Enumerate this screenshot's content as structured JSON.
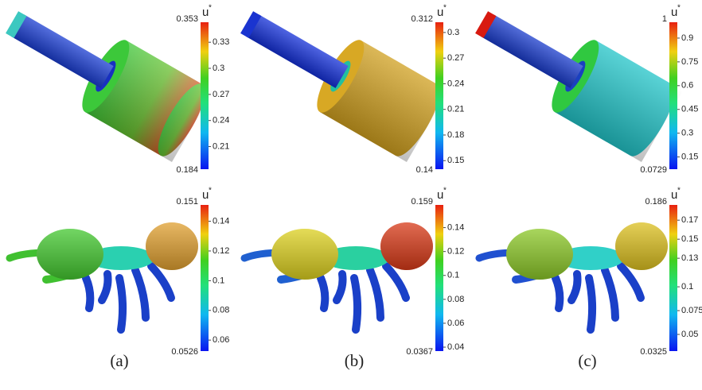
{
  "columns": [
    {
      "caption": "(a)",
      "top": {
        "label": "u",
        "superscript": "*",
        "max": 0.353,
        "min": 0.184,
        "ticks": [
          0.33,
          0.3,
          0.27,
          0.24,
          0.21
        ]
      },
      "bottom": {
        "label": "u",
        "superscript": "*",
        "max": 0.151,
        "min": 0.0526,
        "ticks": [
          0.14,
          0.12,
          0.1,
          0.08,
          0.06
        ]
      }
    },
    {
      "caption": "(b)",
      "top": {
        "label": "u",
        "superscript": "*",
        "max": 0.312,
        "min": 0.14,
        "ticks": [
          0.3,
          0.27,
          0.24,
          0.21,
          0.18,
          0.15
        ]
      },
      "bottom": {
        "label": "u",
        "superscript": "*",
        "max": 0.159,
        "min": 0.0367,
        "ticks": [
          0.14,
          0.12,
          0.1,
          0.08,
          0.06,
          0.04
        ]
      }
    },
    {
      "caption": "(c)",
      "top": {
        "label": "u",
        "superscript": "*",
        "max": 1,
        "min": 0.0729,
        "ticks": [
          0.9,
          0.75,
          0.6,
          0.45,
          0.3,
          0.15
        ]
      },
      "bottom": {
        "label": "u",
        "superscript": "*",
        "max": 0.186,
        "min": 0.0325,
        "ticks": [
          0.17,
          0.15,
          0.13,
          0.1,
          0.075,
          0.05
        ]
      }
    }
  ]
}
